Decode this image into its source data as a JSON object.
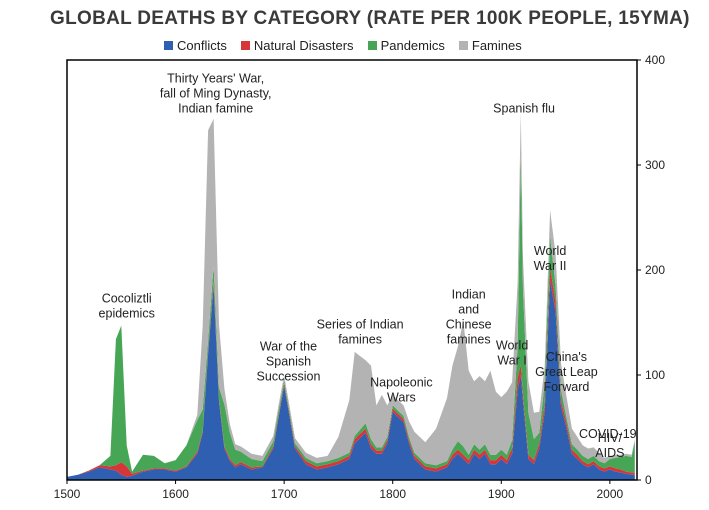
{
  "chart_data": {
    "type": "area",
    "title": "GLOBAL DEATHS BY CATEGORY (RATE PER 100K PEOPLE, 15YMA)",
    "stacking": "stacked",
    "xlim": [
      1500,
      2025
    ],
    "ylim": [
      0,
      400
    ],
    "x_ticks": [
      1500,
      1600,
      1700,
      1800,
      1900,
      2000
    ],
    "y_ticks": [
      0,
      100,
      200,
      300,
      400
    ],
    "y_axis_position": "right",
    "legend_position": "top",
    "x": [
      1500,
      1510,
      1520,
      1530,
      1540,
      1545,
      1550,
      1555,
      1560,
      1570,
      1580,
      1590,
      1600,
      1610,
      1620,
      1625,
      1630,
      1635,
      1640,
      1645,
      1650,
      1655,
      1660,
      1670,
      1680,
      1690,
      1695,
      1700,
      1705,
      1710,
      1720,
      1730,
      1740,
      1750,
      1760,
      1765,
      1770,
      1775,
      1780,
      1785,
      1790,
      1795,
      1800,
      1805,
      1810,
      1815,
      1820,
      1830,
      1840,
      1850,
      1855,
      1860,
      1865,
      1870,
      1875,
      1880,
      1885,
      1890,
      1895,
      1900,
      1905,
      1910,
      1915,
      1918,
      1920,
      1925,
      1930,
      1935,
      1940,
      1945,
      1950,
      1955,
      1960,
      1965,
      1970,
      1975,
      1980,
      1985,
      1990,
      1995,
      2000,
      2005,
      2010,
      2015,
      2020,
      2023
    ],
    "series": [
      {
        "name": "Conflicts",
        "color": "#2f5fb0",
        "values": [
          3,
          5,
          8,
          12,
          10,
          9,
          5,
          3,
          4,
          8,
          10,
          10,
          8,
          12,
          25,
          45,
          120,
          185,
          75,
          30,
          18,
          12,
          15,
          10,
          12,
          30,
          60,
          90,
          60,
          30,
          15,
          10,
          12,
          15,
          20,
          35,
          40,
          45,
          30,
          25,
          25,
          35,
          65,
          60,
          55,
          35,
          20,
          10,
          8,
          12,
          20,
          25,
          20,
          15,
          25,
          20,
          25,
          15,
          15,
          20,
          15,
          25,
          85,
          100,
          75,
          20,
          15,
          30,
          65,
          190,
          160,
          70,
          50,
          25,
          20,
          15,
          12,
          15,
          10,
          8,
          10,
          8,
          7,
          6,
          5,
          5
        ]
      },
      {
        "name": "Natural Disasters",
        "color": "#d6363a",
        "values": [
          0,
          0,
          1,
          2,
          3,
          5,
          12,
          10,
          2,
          1,
          1,
          1,
          1,
          1,
          2,
          2,
          3,
          4,
          3,
          2,
          2,
          2,
          2,
          2,
          1,
          2,
          2,
          2,
          2,
          2,
          3,
          3,
          3,
          3,
          3,
          4,
          4,
          4,
          4,
          3,
          3,
          3,
          3,
          3,
          3,
          3,
          3,
          3,
          3,
          3,
          4,
          4,
          4,
          4,
          4,
          4,
          4,
          4,
          4,
          4,
          4,
          5,
          12,
          10,
          6,
          4,
          4,
          5,
          8,
          12,
          10,
          6,
          5,
          4,
          4,
          3,
          3,
          3,
          3,
          3,
          3,
          3,
          3,
          2,
          2,
          2
        ]
      },
      {
        "name": "Pandemics",
        "color": "#46a656",
        "values": [
          0,
          0,
          0,
          0,
          10,
          120,
          130,
          20,
          2,
          15,
          12,
          5,
          10,
          20,
          30,
          20,
          10,
          15,
          10,
          40,
          25,
          15,
          10,
          8,
          5,
          5,
          5,
          3,
          3,
          3,
          3,
          3,
          3,
          3,
          3,
          3,
          4,
          5,
          5,
          3,
          3,
          3,
          3,
          3,
          3,
          3,
          3,
          3,
          3,
          3,
          5,
          8,
          8,
          5,
          5,
          5,
          5,
          5,
          5,
          5,
          5,
          8,
          30,
          200,
          100,
          40,
          20,
          10,
          20,
          30,
          15,
          10,
          5,
          5,
          5,
          5,
          5,
          5,
          5,
          5,
          7,
          10,
          12,
          15,
          15,
          30
        ]
      },
      {
        "name": "Famines",
        "color": "#b3b3b3",
        "values": [
          0,
          0,
          0,
          0,
          0,
          0,
          0,
          0,
          0,
          0,
          0,
          0,
          0,
          0,
          5,
          80,
          200,
          140,
          60,
          15,
          8,
          5,
          5,
          5,
          5,
          5,
          5,
          5,
          5,
          5,
          5,
          5,
          5,
          20,
          50,
          80,
          70,
          60,
          70,
          40,
          50,
          30,
          10,
          10,
          10,
          15,
          20,
          20,
          35,
          60,
          80,
          90,
          120,
          80,
          60,
          70,
          60,
          80,
          60,
          50,
          60,
          55,
          60,
          40,
          30,
          30,
          25,
          20,
          15,
          25,
          30,
          25,
          20,
          15,
          12,
          10,
          10,
          8,
          8,
          5,
          3,
          3,
          2,
          2,
          2,
          2
        ]
      }
    ],
    "annotations": [
      {
        "lines": [
          "Cocoliztli",
          "epidemics"
        ],
        "x": 1555,
        "y": 155
      },
      {
        "lines": [
          "Thirty Years' War,",
          "fall of Ming Dynasty,",
          "Indian famine"
        ],
        "x": 1637,
        "y": 350
      },
      {
        "lines": [
          "War of the",
          "Spanish",
          "Succession"
        ],
        "x": 1704,
        "y": 95
      },
      {
        "lines": [
          "Series of Indian",
          "famines"
        ],
        "x": 1770,
        "y": 130
      },
      {
        "lines": [
          "Napoleonic",
          "Wars"
        ],
        "x": 1808,
        "y": 75
      },
      {
        "lines": [
          "Indian",
          "and",
          "Chinese",
          "famines"
        ],
        "x": 1870,
        "y": 130
      },
      {
        "lines": [
          "World",
          "War I"
        ],
        "x": 1910,
        "y": 110
      },
      {
        "lines": [
          "Spanish flu"
        ],
        "x": 1921,
        "y": 350
      },
      {
        "lines": [
          "World",
          "War II"
        ],
        "x": 1945,
        "y": 200
      },
      {
        "lines": [
          "China's",
          "Great Leap",
          "Forward"
        ],
        "x": 1960,
        "y": 85
      },
      {
        "lines": [
          "COVID-19"
        ],
        "x": 2020,
        "y": 40
      },
      {
        "lines": [
          "HIV/",
          "AIDS"
        ],
        "x": 2000,
        "y": 22
      }
    ]
  }
}
